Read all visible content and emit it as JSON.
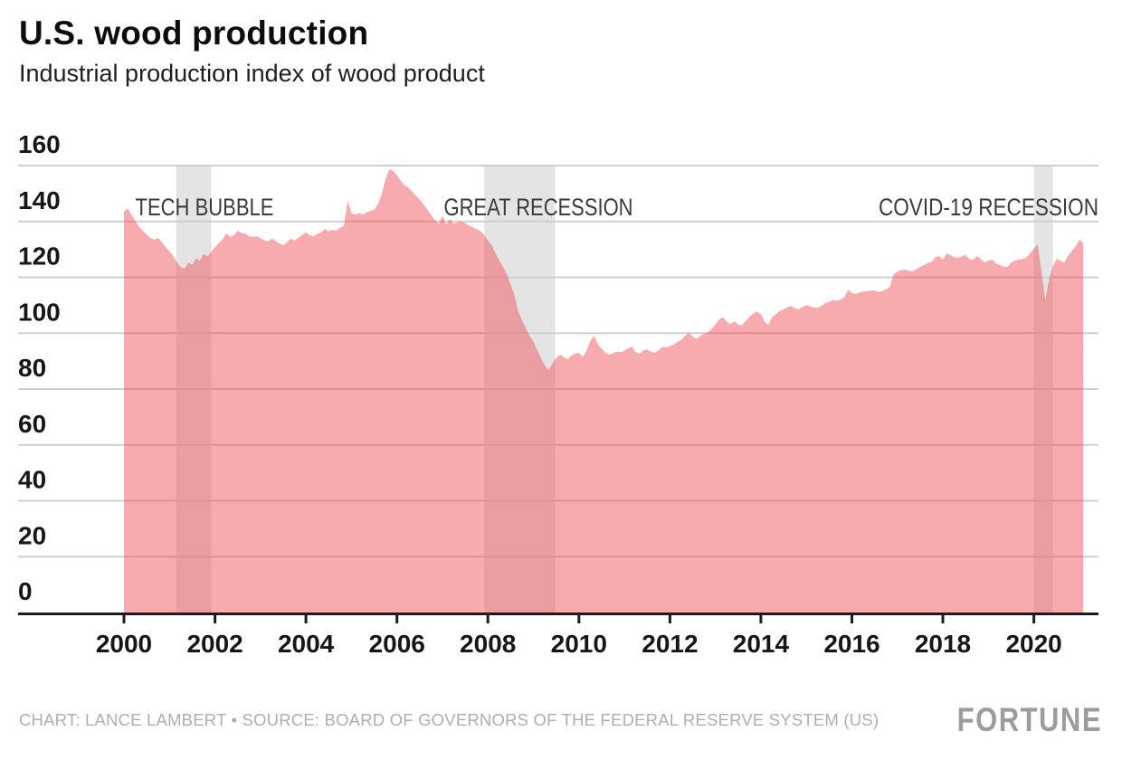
{
  "header": {
    "title": "U.S. wood production",
    "subtitle": "Industrial production index of wood product"
  },
  "footer": {
    "credit": "CHART: LANCE LAMBERT • SOURCE: BOARD OF GOVERNORS OF THE FEDERAL RESERVE SYSTEM (US)",
    "brand": "FORTUNE"
  },
  "chart_data": {
    "type": "area",
    "title": "U.S. wood production",
    "subtitle": "Industrial production index of wood product",
    "xlabel": "",
    "ylabel": "",
    "x_axis": {
      "ticks": [
        2000,
        2002,
        2004,
        2006,
        2008,
        2010,
        2012,
        2014,
        2016,
        2018,
        2020
      ],
      "range": [
        2000,
        2021.4
      ]
    },
    "y_axis": {
      "ticks": [
        0,
        20,
        40,
        60,
        80,
        100,
        120,
        140,
        160
      ],
      "range": [
        0,
        160
      ],
      "grid": true
    },
    "events": [
      {
        "label": "TECH BUBBLE",
        "start": 2001.15,
        "end": 2001.92
      },
      {
        "label": "GREAT RECESSION",
        "start": 2007.92,
        "end": 2009.48
      },
      {
        "label": "COVID-19 RECESSION",
        "start": 2020.0,
        "end": 2020.42
      }
    ],
    "series": [
      {
        "name": "Industrial production index of wood product",
        "start_year": 2000,
        "frequency": "monthly",
        "values": [
          143.5,
          144.6,
          142.4,
          140.2,
          138.1,
          136.7,
          135.3,
          134.1,
          133.4,
          134.2,
          132.6,
          130.8,
          129.3,
          127.6,
          125.4,
          123.6,
          123.1,
          125.3,
          124.4,
          126.9,
          125.9,
          128.4,
          127.5,
          129.2,
          130.8,
          132.3,
          133.5,
          135.7,
          134.5,
          135.1,
          136.7,
          135.9,
          135.7,
          134.7,
          134.4,
          134.7,
          134.1,
          133.2,
          132.8,
          133.9,
          133.1,
          132.1,
          131.4,
          132.6,
          133.9,
          133.2,
          134.2,
          135.1,
          136.1,
          135.1,
          134.6,
          135.6,
          136.1,
          137.3,
          136.5,
          137.0,
          136.7,
          137.8,
          138.4,
          147.5,
          143.0,
          142.4,
          142.9,
          142.6,
          143.2,
          143.7,
          144.2,
          146.1,
          149.8,
          155.1,
          158.6,
          158.2,
          156.5,
          154.6,
          153.0,
          152.1,
          150.7,
          149.2,
          147.9,
          146.2,
          144.4,
          142.3,
          140.5,
          139.2,
          142.1,
          139.0,
          140.9,
          139.3,
          139.7,
          140.0,
          139.4,
          138.5,
          138.0,
          137.2,
          136.6,
          135.1,
          133.2,
          131.5,
          128.7,
          126.0,
          123.7,
          121.0,
          117.5,
          113.5,
          107.9,
          104.5,
          101.9,
          99.0,
          97.0,
          93.9,
          91.0,
          88.4,
          86.8,
          89.1,
          91.2,
          92.3,
          91.5,
          90.7,
          92.0,
          92.6,
          93.0,
          91.5,
          93.8,
          97.2,
          99.1,
          96.0,
          94.4,
          93.0,
          92.3,
          92.8,
          93.4,
          93.2,
          93.8,
          94.6,
          95.2,
          93.2,
          92.7,
          93.8,
          94.2,
          93.4,
          93.0,
          93.9,
          95.1,
          95.0,
          95.4,
          96.0,
          96.8,
          97.7,
          99.0,
          100.1,
          98.8,
          97.9,
          99.0,
          99.9,
          100.3,
          101.6,
          103.2,
          104.9,
          105.8,
          104.1,
          103.3,
          104.2,
          103.1,
          102.7,
          104.4,
          105.9,
          107.0,
          107.8,
          106.8,
          104.1,
          103.0,
          105.8,
          106.8,
          108.0,
          108.5,
          109.3,
          109.8,
          108.9,
          108.5,
          109.4,
          110.1,
          109.5,
          109.2,
          109.1,
          109.8,
          110.8,
          111.2,
          112.0,
          111.5,
          112.1,
          112.8,
          115.6,
          114.4,
          114.0,
          114.6,
          114.9,
          115.0,
          115.2,
          115.3,
          114.7,
          115.1,
          115.7,
          116.6,
          121.1,
          122.0,
          122.5,
          122.8,
          122.3,
          122.1,
          123.0,
          123.7,
          124.4,
          125.1,
          125.6,
          127.2,
          127.6,
          126.3,
          128.6,
          127.9,
          127.2,
          127.0,
          127.6,
          128.0,
          126.5,
          126.3,
          127.6,
          126.6,
          125.3,
          126.0,
          126.3,
          125.0,
          124.4,
          123.8,
          123.7,
          125.2,
          126.0,
          126.3,
          126.6,
          127.0,
          128.6,
          130.3,
          131.8,
          122.1,
          111.8,
          119.5,
          124.0,
          126.6,
          126.0,
          125.2,
          127.6,
          129.5,
          131.0,
          133.5,
          132.2
        ]
      }
    ],
    "colors": {
      "area_fill": "#F05056",
      "area_opacity": 0.48,
      "recession_band": "#E4E4E4",
      "gridline": "#CFCFCF",
      "axis": "#1C1C1C",
      "tick_label": "#161616",
      "event_label": "#3B3B3B"
    }
  }
}
